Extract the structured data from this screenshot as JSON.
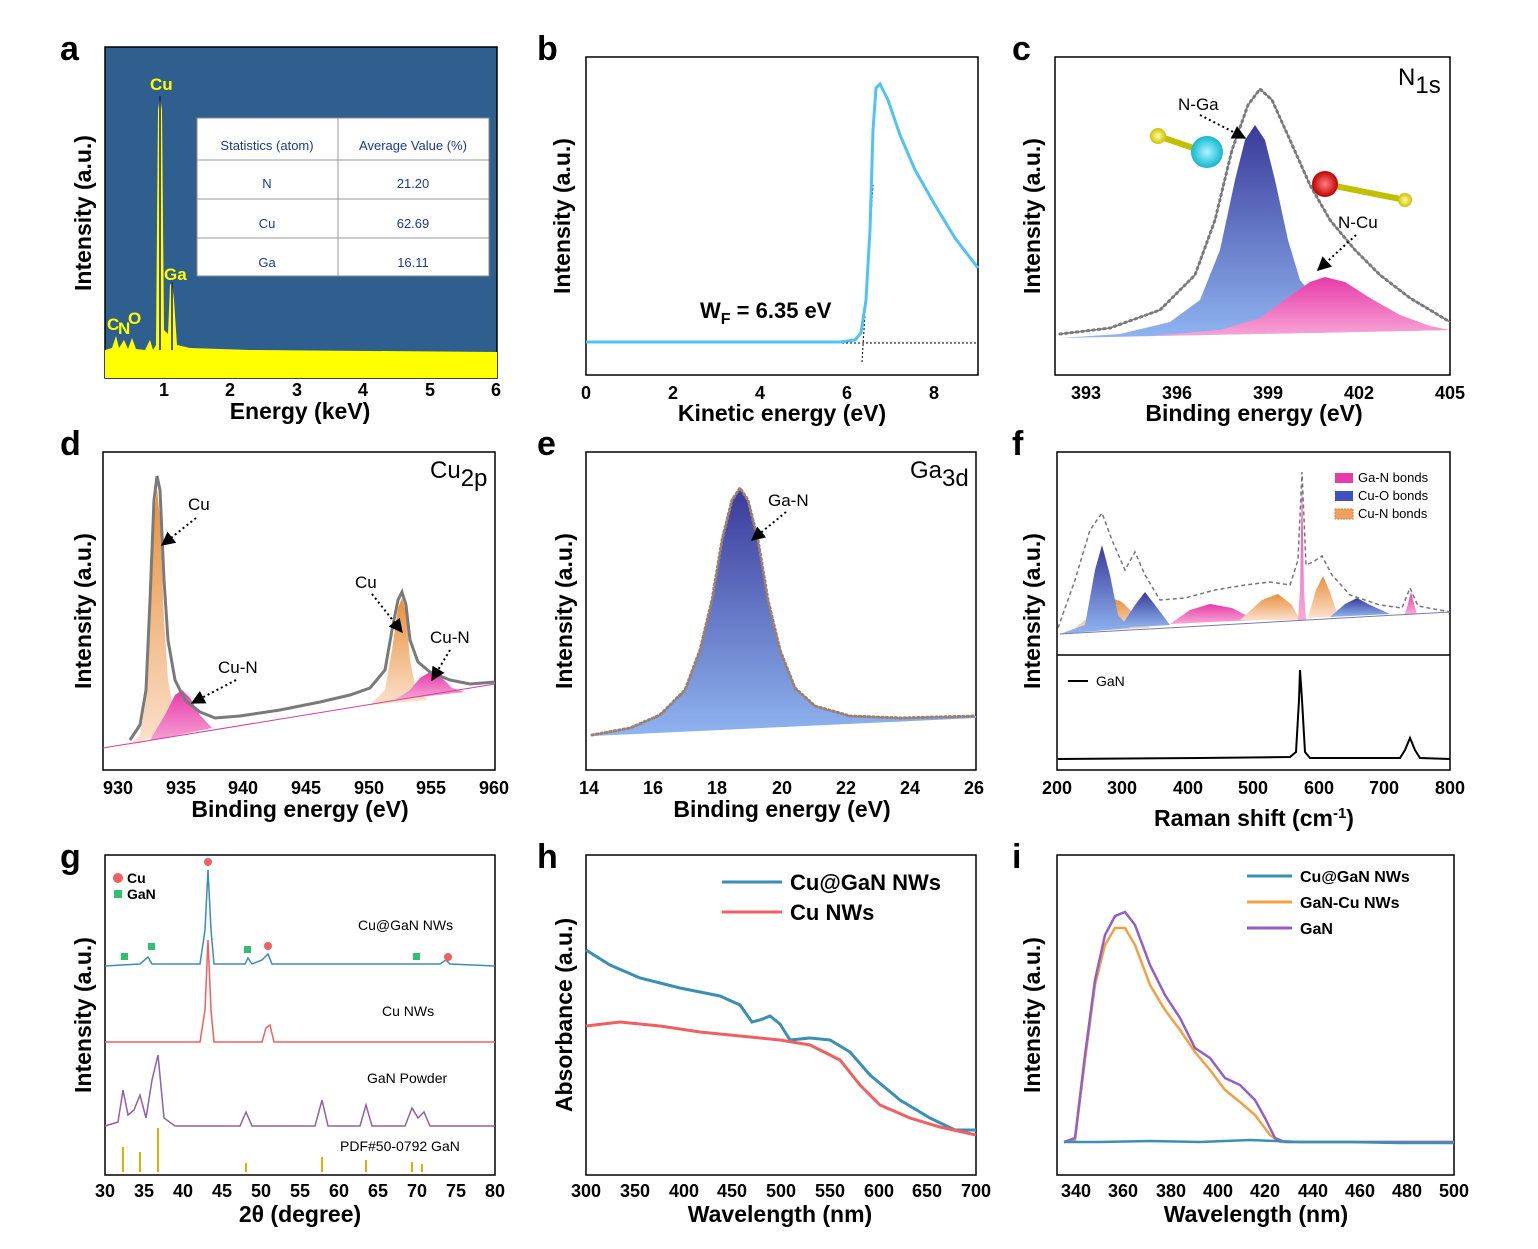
{
  "panels": {
    "a": {
      "letter": "a",
      "xlabel": "Energy (keV)",
      "ylabel": "Intensity (a.u.)",
      "xticks": [
        "1",
        "2",
        "3",
        "4",
        "5",
        "6"
      ],
      "peaks": [
        "Cu",
        "Ga",
        "C",
        "N",
        "O"
      ],
      "table": {
        "headers": [
          "Statistics (atom)",
          "Average Value (%)"
        ],
        "rows": [
          [
            "N",
            "21.20"
          ],
          [
            "Cu",
            "62.69"
          ],
          [
            "Ga",
            "16.11"
          ]
        ]
      }
    },
    "b": {
      "letter": "b",
      "xlabel": "Kinetic energy (eV)",
      "ylabel": "Intensity (a.u.)",
      "xticks": [
        "0",
        "2",
        "4",
        "6",
        "8"
      ],
      "annotation_main": "W",
      "annotation_sub": "F",
      "annotation_rest": " = 6.35 eV"
    },
    "c": {
      "letter": "c",
      "xlabel": "Binding energy (eV)",
      "ylabel": "Intensity (a.u.)",
      "xticks": [
        "393",
        "396",
        "399",
        "402",
        "405"
      ],
      "corner_main": "N",
      "corner_sub": "1s",
      "labels": [
        "N-Ga",
        "N-Cu"
      ]
    },
    "d": {
      "letter": "d",
      "xlabel": "Binding energy (eV)",
      "ylabel": "Intensity (a.u.)",
      "xticks": [
        "930",
        "935",
        "940",
        "945",
        "950",
        "955",
        "960"
      ],
      "corner_main": "Cu",
      "corner_sub": "2p",
      "labels": [
        "Cu",
        "Cu-N",
        "Cu",
        "Cu-N"
      ]
    },
    "e": {
      "letter": "e",
      "xlabel": "Binding energy (eV)",
      "ylabel": "Intensity (a.u.)",
      "xticks": [
        "14",
        "16",
        "18",
        "20",
        "22",
        "24",
        "26"
      ],
      "corner_main": "Ga",
      "corner_sub": "3d",
      "labels": [
        "Ga-N"
      ]
    },
    "f": {
      "letter": "f",
      "xlabel_main": "Raman shift (cm",
      "xlabel_sup": "-1",
      "xlabel_end": ")",
      "ylabel": "Intensity (a.u.)",
      "xticks": [
        "200",
        "300",
        "400",
        "500",
        "600",
        "700",
        "800"
      ],
      "legend": [
        "Ga-N bonds",
        "Cu-O bonds",
        "Cu-N bonds"
      ],
      "lower_legend": "GaN"
    },
    "g": {
      "letter": "g",
      "xlabel": "2θ (degree)",
      "ylabel": "Intensity (a.u.)",
      "xticks": [
        "30",
        "35",
        "40",
        "45",
        "50",
        "55",
        "60",
        "65",
        "70",
        "75",
        "80"
      ],
      "legend": [
        "Cu",
        "GaN"
      ],
      "trace_labels": [
        "Cu@GaN NWs",
        "Cu NWs",
        "GaN Powder",
        "PDF#50-0792 GaN"
      ]
    },
    "h": {
      "letter": "h",
      "xlabel": "Wavelength (nm)",
      "ylabel": "Absorbance (a.u.)",
      "xticks": [
        "300",
        "350",
        "400",
        "450",
        "500",
        "550",
        "600",
        "650",
        "700"
      ],
      "legend": [
        "Cu@GaN NWs",
        "Cu NWs"
      ]
    },
    "i": {
      "letter": "i",
      "xlabel": "Wavelength (nm)",
      "ylabel": "Intensity (a.u.)",
      "xticks": [
        "340",
        "360",
        "380",
        "400",
        "420",
        "440",
        "460",
        "480",
        "500"
      ],
      "legend": [
        "Cu@GaN NWs",
        "GaN-Cu NWs",
        "GaN"
      ]
    }
  },
  "colors": {
    "eds_bg": "#2f5f8f",
    "eds_fill": "#ffff00",
    "cyan": "#4fc3f7",
    "gray": "#7a7a7a",
    "blue_fill": "#6a78d0",
    "pink_fill": "#f060b0",
    "orange_fill": "#f5b07a",
    "teal": "#3a8fb5",
    "red": "#f06060",
    "orange": "#f5a040",
    "purple": "#9060c8"
  },
  "chart_data": [
    {
      "panel": "a",
      "type": "area",
      "title": "",
      "xlabel": "Energy (keV)",
      "ylabel": "Intensity (a.u.)",
      "xlim": [
        0.1,
        6
      ],
      "peaks": [
        {
          "name": "C",
          "x": 0.28,
          "y": 0.06
        },
        {
          "name": "N",
          "x": 0.39,
          "y": 0.05
        },
        {
          "name": "O",
          "x": 0.52,
          "y": 0.07
        },
        {
          "name": "Cu",
          "x": 0.93,
          "y": 1.0
        },
        {
          "name": "Ga",
          "x": 1.1,
          "y": 0.26
        }
      ],
      "table": {
        "N": 21.2,
        "Cu": 62.69,
        "Ga": 16.11
      }
    },
    {
      "panel": "b",
      "type": "line",
      "xlabel": "Kinetic energy (eV)",
      "ylabel": "Intensity (a.u.)",
      "xlim": [
        0,
        9
      ],
      "x": [
        0,
        2,
        4,
        5,
        6,
        6.2,
        6.35,
        6.5,
        6.6,
        6.8,
        7,
        7.5,
        8,
        8.5,
        9
      ],
      "y": [
        0.05,
        0.05,
        0.05,
        0.05,
        0.06,
        0.1,
        0.3,
        0.85,
        1.0,
        0.97,
        0.88,
        0.7,
        0.55,
        0.44,
        0.36
      ],
      "annotation": "W_F = 6.35 eV"
    },
    {
      "panel": "c",
      "type": "area",
      "xlabel": "Binding energy (eV)",
      "ylabel": "Intensity (a.u.)",
      "xlim": [
        392,
        405
      ],
      "series": [
        {
          "name": "N-Ga",
          "center": 398.6,
          "height": 0.82
        },
        {
          "name": "N-Cu",
          "center": 400.7,
          "height": 0.25
        }
      ]
    },
    {
      "panel": "d",
      "type": "area",
      "xlabel": "Binding energy (eV)",
      "ylabel": "Intensity (a.u.)",
      "xlim": [
        928,
        960
      ],
      "series": [
        {
          "name": "Cu",
          "center": 932.5,
          "height": 1.0
        },
        {
          "name": "Cu-N",
          "center": 934.5,
          "height": 0.2
        },
        {
          "name": "Cu",
          "center": 952.3,
          "height": 0.52
        },
        {
          "name": "Cu-N",
          "center": 955.0,
          "height": 0.12
        }
      ]
    },
    {
      "panel": "e",
      "type": "area",
      "xlabel": "Binding energy (eV)",
      "ylabel": "Intensity (a.u.)",
      "xlim": [
        14,
        26
      ],
      "series": [
        {
          "name": "Ga-N",
          "center": 18.8,
          "height": 1.0
        }
      ]
    },
    {
      "panel": "f",
      "type": "area",
      "xlabel": "Raman shift (cm-1)",
      "ylabel": "Intensity (a.u.)",
      "xlim": [
        200,
        800
      ],
      "series": [
        {
          "name": "Ga-N bonds",
          "peaks": [
            435,
            570,
            738
          ]
        },
        {
          "name": "Cu-O bonds",
          "peaks": [
            272,
            332,
            655
          ]
        },
        {
          "name": "Cu-N bonds",
          "peaks": [
            300,
            530,
            607
          ]
        },
        {
          "name": "GaN",
          "peaks": [
            568,
            738
          ]
        }
      ]
    },
    {
      "panel": "g",
      "type": "line",
      "xlabel": "2θ (degree)",
      "ylabel": "Intensity (a.u.)",
      "xlim": [
        30,
        80
      ],
      "series": [
        {
          "name": "Cu@GaN NWs",
          "peaks": [
            32.4,
            36.8,
            43.3,
            48.1,
            50.4,
            74.1
          ]
        },
        {
          "name": "Cu NWs",
          "peaks": [
            43.3,
            50.4
          ]
        },
        {
          "name": "GaN Powder",
          "peaks": [
            32.4,
            34.6,
            36.9,
            48.1,
            57.8,
            63.4,
            69.1,
            70.5
          ]
        },
        {
          "name": "PDF#50-0792 GaN",
          "peaks": [
            32.4,
            34.6,
            36.9,
            48.1,
            57.8,
            63.4,
            68.0,
            69.1,
            70.5
          ]
        }
      ]
    },
    {
      "panel": "h",
      "type": "line",
      "xlabel": "Wavelength (nm)",
      "ylabel": "Absorbance (a.u.)",
      "xlim": [
        300,
        700
      ],
      "x": [
        300,
        350,
        400,
        450,
        470,
        490,
        510,
        550,
        600,
        650,
        700
      ],
      "series": [
        {
          "name": "Cu@GaN NWs",
          "values": [
            0.78,
            0.68,
            0.62,
            0.57,
            0.5,
            0.55,
            0.44,
            0.42,
            0.27,
            0.13,
            0.08
          ]
        },
        {
          "name": "Cu NWs",
          "values": [
            0.52,
            0.54,
            0.52,
            0.48,
            0.47,
            0.46,
            0.45,
            0.4,
            0.23,
            0.12,
            0.08
          ]
        }
      ]
    },
    {
      "panel": "i",
      "type": "line",
      "xlabel": "Wavelength (nm)",
      "ylabel": "Intensity (a.u.)",
      "xlim": [
        335,
        500
      ],
      "x": [
        335,
        345,
        355,
        362,
        370,
        380,
        390,
        400,
        410,
        415,
        420,
        425,
        430,
        500
      ],
      "series": [
        {
          "name": "Cu@GaN NWs",
          "values": [
            0.02,
            0.02,
            0.02,
            0.02,
            0.02,
            0.02,
            0.02,
            0.02,
            0.02,
            0.02,
            0.02,
            0.02,
            0.02,
            0.02
          ]
        },
        {
          "name": "GaN-Cu NWs",
          "values": [
            0.02,
            0.3,
            0.85,
            0.93,
            0.8,
            0.6,
            0.47,
            0.35,
            0.22,
            0.15,
            0.08,
            0.03,
            0.02,
            0.02
          ]
        },
        {
          "name": "GaN",
          "values": [
            0.02,
            0.32,
            0.88,
            0.96,
            0.83,
            0.62,
            0.5,
            0.42,
            0.32,
            0.25,
            0.13,
            0.05,
            0.02,
            0.02
          ]
        }
      ]
    }
  ]
}
